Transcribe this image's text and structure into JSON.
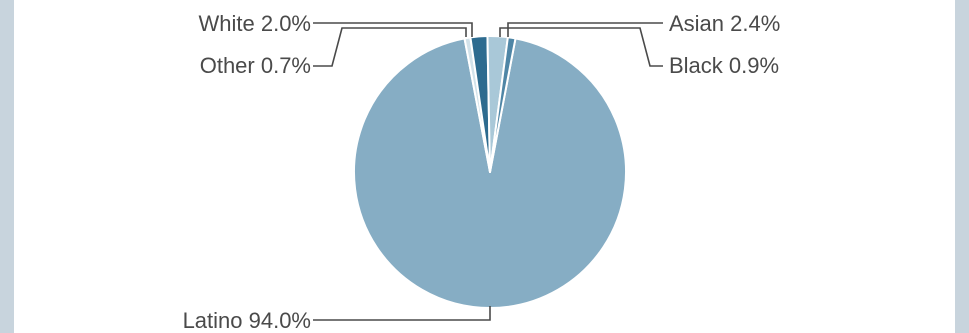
{
  "chart_data": {
    "type": "pie",
    "slices": [
      {
        "label": "Latino",
        "value": 94.0,
        "text": "Latino 94.0%",
        "color": "#86adc4"
      },
      {
        "label": "Other",
        "value": 0.7,
        "text": "Other 0.7%",
        "color": "#d2e2ea"
      },
      {
        "label": "White",
        "value": 2.0,
        "text": "White 2.0%",
        "color": "#2d6b8f"
      },
      {
        "label": "Asian",
        "value": 2.4,
        "text": "Asian 2.4%",
        "color": "#a9c8d8"
      },
      {
        "label": "Black",
        "value": 0.9,
        "text": "Black 0.9%",
        "color": "#4f86a6"
      }
    ],
    "label_color": "#4a4a4a",
    "background": "#ffffff",
    "frame_color": "#c8d4dd"
  }
}
